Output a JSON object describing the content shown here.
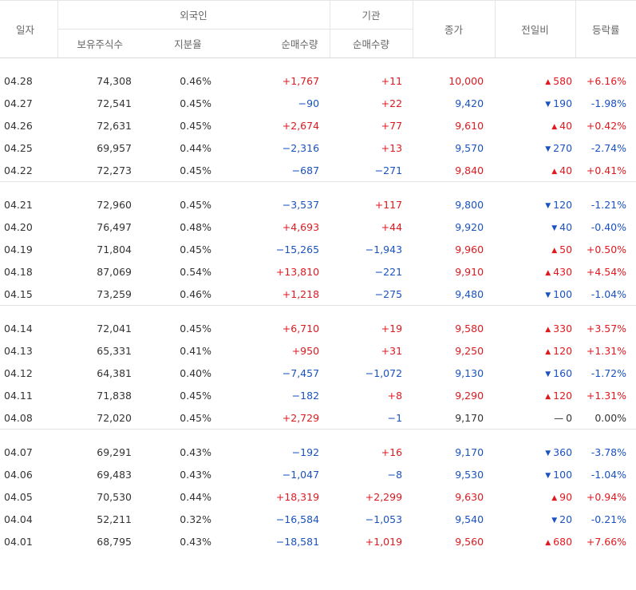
{
  "headers": {
    "date": "일자",
    "foreign": "외국인",
    "institution": "기관",
    "holdings": "보유주식수",
    "ratio": "지분율",
    "foreign_net": "순매수량",
    "inst_net": "순매수량",
    "close": "종가",
    "change": "전일비",
    "pct": "등락률"
  },
  "groups": [
    [
      {
        "date": "04.28",
        "hold": "74,308",
        "ratio": "0.46%",
        "fnet": "+1,767",
        "inet": "+11",
        "close": "10,000",
        "dir": "up",
        "chg": "580",
        "pct": "+6.16%"
      },
      {
        "date": "04.27",
        "hold": "72,541",
        "ratio": "0.45%",
        "fnet": "−90",
        "inet": "+22",
        "close": "9,420",
        "dir": "down",
        "chg": "190",
        "pct": "-1.98%"
      },
      {
        "date": "04.26",
        "hold": "72,631",
        "ratio": "0.45%",
        "fnet": "+2,674",
        "inet": "+77",
        "close": "9,610",
        "dir": "up",
        "chg": "40",
        "pct": "+0.42%"
      },
      {
        "date": "04.25",
        "hold": "69,957",
        "ratio": "0.44%",
        "fnet": "−2,316",
        "inet": "+13",
        "close": "9,570",
        "dir": "down",
        "chg": "270",
        "pct": "-2.74%"
      },
      {
        "date": "04.22",
        "hold": "72,273",
        "ratio": "0.45%",
        "fnet": "−687",
        "inet": "−271",
        "close": "9,840",
        "dir": "up",
        "chg": "40",
        "pct": "+0.41%"
      }
    ],
    [
      {
        "date": "04.21",
        "hold": "72,960",
        "ratio": "0.45%",
        "fnet": "−3,537",
        "inet": "+117",
        "close": "9,800",
        "dir": "down",
        "chg": "120",
        "pct": "-1.21%"
      },
      {
        "date": "04.20",
        "hold": "76,497",
        "ratio": "0.48%",
        "fnet": "+4,693",
        "inet": "+44",
        "close": "9,920",
        "dir": "down",
        "chg": "40",
        "pct": "-0.40%"
      },
      {
        "date": "04.19",
        "hold": "71,804",
        "ratio": "0.45%",
        "fnet": "−15,265",
        "inet": "−1,943",
        "close": "9,960",
        "dir": "up",
        "chg": "50",
        "pct": "+0.50%"
      },
      {
        "date": "04.18",
        "hold": "87,069",
        "ratio": "0.54%",
        "fnet": "+13,810",
        "inet": "−221",
        "close": "9,910",
        "dir": "up",
        "chg": "430",
        "pct": "+4.54%"
      },
      {
        "date": "04.15",
        "hold": "73,259",
        "ratio": "0.46%",
        "fnet": "+1,218",
        "inet": "−275",
        "close": "9,480",
        "dir": "down",
        "chg": "100",
        "pct": "-1.04%"
      }
    ],
    [
      {
        "date": "04.14",
        "hold": "72,041",
        "ratio": "0.45%",
        "fnet": "+6,710",
        "inet": "+19",
        "close": "9,580",
        "dir": "up",
        "chg": "330",
        "pct": "+3.57%"
      },
      {
        "date": "04.13",
        "hold": "65,331",
        "ratio": "0.41%",
        "fnet": "+950",
        "inet": "+31",
        "close": "9,250",
        "dir": "up",
        "chg": "120",
        "pct": "+1.31%"
      },
      {
        "date": "04.12",
        "hold": "64,381",
        "ratio": "0.40%",
        "fnet": "−7,457",
        "inet": "−1,072",
        "close": "9,130",
        "dir": "down",
        "chg": "160",
        "pct": "-1.72%"
      },
      {
        "date": "04.11",
        "hold": "71,838",
        "ratio": "0.45%",
        "fnet": "−182",
        "inet": "+8",
        "close": "9,290",
        "dir": "up",
        "chg": "120",
        "pct": "+1.31%"
      },
      {
        "date": "04.08",
        "hold": "72,020",
        "ratio": "0.45%",
        "fnet": "+2,729",
        "inet": "−1",
        "close": "9,170",
        "dir": "flat",
        "chg": "0",
        "pct": "0.00%"
      }
    ],
    [
      {
        "date": "04.07",
        "hold": "69,291",
        "ratio": "0.43%",
        "fnet": "−192",
        "inet": "+16",
        "close": "9,170",
        "dir": "down",
        "chg": "360",
        "pct": "-3.78%"
      },
      {
        "date": "04.06",
        "hold": "69,483",
        "ratio": "0.43%",
        "fnet": "−1,047",
        "inet": "−8",
        "close": "9,530",
        "dir": "down",
        "chg": "100",
        "pct": "-1.04%"
      },
      {
        "date": "04.05",
        "hold": "70,530",
        "ratio": "0.44%",
        "fnet": "+18,319",
        "inet": "+2,299",
        "close": "9,630",
        "dir": "up",
        "chg": "90",
        "pct": "+0.94%"
      },
      {
        "date": "04.04",
        "hold": "52,211",
        "ratio": "0.32%",
        "fnet": "−16,584",
        "inet": "−1,053",
        "close": "9,540",
        "dir": "down",
        "chg": "20",
        "pct": "-0.21%"
      },
      {
        "date": "04.01",
        "hold": "68,795",
        "ratio": "0.43%",
        "fnet": "−18,581",
        "inet": "+1,019",
        "close": "9,560",
        "dir": "up",
        "chg": "680",
        "pct": "+7.66%"
      }
    ]
  ],
  "colors": {
    "up": "#e0191f",
    "down": "#1a52c2",
    "flat": "#333333"
  },
  "icons": {
    "up": "triangle-up-icon",
    "down": "triangle-down-icon",
    "flat": "dash-icon"
  }
}
